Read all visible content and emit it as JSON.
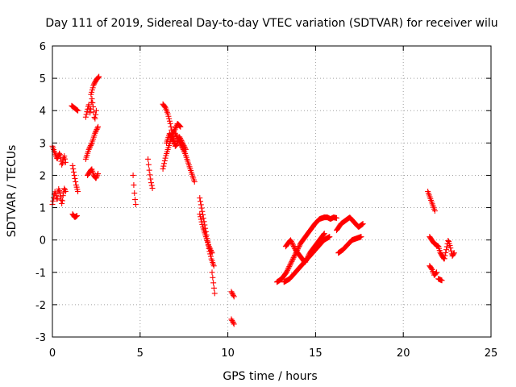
{
  "chart_data": {
    "type": "scatter",
    "title": "Day 111 of 2019, Sidereal Day-to-day VTEC variation (SDTVAR) for receiver wilu",
    "xlabel": "GPS time / hours",
    "ylabel": "SDTVAR / TECUs",
    "xlim": [
      0,
      25
    ],
    "ylim": [
      -3,
      6
    ],
    "xticks": [
      "0",
      "5",
      "10",
      "15",
      "20",
      "25"
    ],
    "yticks": [
      "-3",
      "-2",
      "-1",
      "0",
      "1",
      "2",
      "3",
      "4",
      "5",
      "6"
    ],
    "grid": true,
    "marker": "+",
    "color": "#ff0000",
    "series": [
      {
        "name": "SDTVAR",
        "segments": [
          {
            "x0": 0.0,
            "x1": 0.75,
            "y": [
              2.9,
              2.8,
              2.7,
              2.6,
              2.5,
              2.6,
              2.7,
              2.5,
              2.3,
              2.5,
              2.6,
              2.4
            ]
          },
          {
            "x0": 0.0,
            "x1": 0.75,
            "y": [
              1.1,
              1.3,
              1.5,
              1.4,
              1.2,
              1.6,
              1.5,
              1.3,
              1.1,
              1.4,
              1.6,
              1.5
            ]
          },
          {
            "x0": 1.1,
            "x1": 1.45,
            "y": [
              4.15,
              4.1,
              4.05,
              4.0
            ]
          },
          {
            "x0": 1.15,
            "x1": 1.45,
            "y": [
              2.3,
              2.0,
              1.7,
              1.5
            ]
          },
          {
            "x0": 1.15,
            "x1": 1.4,
            "y": [
              0.8,
              0.7,
              0.75
            ]
          },
          {
            "x0": 1.9,
            "x1": 2.5,
            "y": [
              3.8,
              4.0,
              4.2,
              3.9,
              4.4,
              4.1,
              3.7,
              4.0
            ]
          },
          {
            "x0": 1.9,
            "x1": 2.6,
            "y": [
              2.5,
              2.8,
              3.0,
              3.3,
              3.5
            ]
          },
          {
            "x0": 2.0,
            "x1": 2.6,
            "y": [
              2.0,
              2.1,
              2.2,
              2.0,
              1.9,
              2.05
            ]
          },
          {
            "x0": 2.2,
            "x1": 2.65,
            "y": [
              4.5,
              4.8,
              4.95,
              5.05
            ]
          },
          {
            "x0": 4.6,
            "x1": 4.75,
            "y": [
              2.0,
              1.6,
              1.3,
              1.1
            ]
          },
          {
            "x0": 5.45,
            "x1": 5.7,
            "y": [
              2.5,
              2.1,
              1.8,
              1.6
            ]
          },
          {
            "x0": 6.3,
            "x1": 7.0,
            "y": [
              4.2,
              4.1,
              3.9,
              3.6,
              3.2,
              2.9
            ]
          },
          {
            "x0": 6.3,
            "x1": 7.3,
            "y": [
              2.2,
              2.6,
              2.9,
              3.2,
              3.4,
              3.6,
              3.5
            ]
          },
          {
            "x0": 6.5,
            "x1": 7.6,
            "y": [
              3.0,
              3.3,
              3.1,
              2.9,
              3.2,
              3.0,
              2.8
            ]
          },
          {
            "x0": 7.0,
            "x1": 8.1,
            "y": [
              3.3,
              3.1,
              2.9,
              2.7,
              2.4,
              2.1,
              1.8
            ]
          },
          {
            "x0": 8.4,
            "x1": 9.2,
            "y": [
              1.3,
              0.9,
              0.5,
              0.1,
              -0.3,
              -0.6,
              -0.8
            ]
          },
          {
            "x0": 8.4,
            "x1": 9.1,
            "y": [
              0.8,
              0.4,
              0.1,
              -0.2,
              -0.4
            ]
          },
          {
            "x0": 9.1,
            "x1": 9.25,
            "y": [
              -1.0,
              -1.65
            ]
          },
          {
            "x0": 10.2,
            "x1": 10.35,
            "y": [
              -1.6,
              -1.75
            ]
          },
          {
            "x0": 10.2,
            "x1": 10.35,
            "y": [
              -2.45,
              -2.6
            ]
          },
          {
            "x0": 12.8,
            "x1": 15.5,
            "y": [
              -1.3,
              -1.2,
              -1.0,
              -0.7,
              -0.4,
              -0.1,
              0.1,
              0.3,
              0.5,
              0.65,
              0.7
            ]
          },
          {
            "x0": 13.3,
            "x1": 15.5,
            "y": [
              -0.2,
              0.0,
              -0.3,
              -0.5,
              -0.7,
              -0.4,
              -0.2,
              0.0,
              0.2
            ]
          },
          {
            "x0": 13.2,
            "x1": 15.8,
            "y": [
              -1.3,
              -1.2,
              -1.0,
              -0.8,
              -0.6,
              -0.4,
              -0.2,
              0.0,
              0.1
            ]
          },
          {
            "x0": 15.5,
            "x1": 16.2,
            "y": [
              0.7,
              0.7,
              0.65,
              0.7,
              0.68
            ]
          },
          {
            "x0": 16.2,
            "x1": 17.7,
            "y": [
              0.3,
              0.5,
              0.6,
              0.7,
              0.55,
              0.4,
              0.5
            ]
          },
          {
            "x0": 16.3,
            "x1": 17.6,
            "y": [
              -0.4,
              -0.3,
              -0.15,
              0.0,
              0.05,
              0.1
            ]
          },
          {
            "x0": 21.4,
            "x1": 21.8,
            "y": [
              1.5,
              1.3,
              1.1,
              0.9
            ]
          },
          {
            "x0": 21.5,
            "x1": 22.0,
            "y": [
              0.1,
              -0.1,
              -0.2
            ]
          },
          {
            "x0": 21.5,
            "x1": 21.9,
            "y": [
              -0.8,
              -0.9,
              -1.1,
              -1.0
            ]
          },
          {
            "x0": 22.0,
            "x1": 22.2,
            "y": [
              -1.2,
              -1.25
            ]
          },
          {
            "x0": 22.0,
            "x1": 22.9,
            "y": [
              -0.2,
              -0.4,
              -0.5,
              -0.6,
              -0.3,
              0.0,
              -0.2,
              -0.5,
              -0.4
            ]
          }
        ]
      }
    ]
  }
}
